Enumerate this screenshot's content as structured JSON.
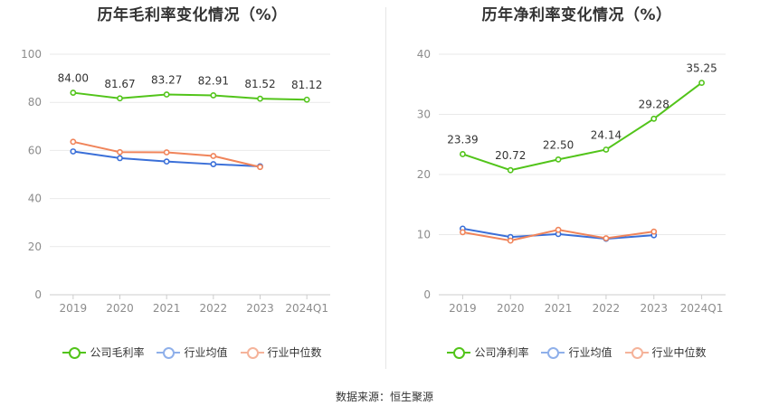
{
  "chart_data": [
    {
      "type": "line",
      "title": "历年毛利率变化情况（%）",
      "categories": [
        "2019",
        "2020",
        "2021",
        "2022",
        "2023",
        "2024Q1"
      ],
      "ylim": [
        0,
        100
      ],
      "yticks": [
        0,
        20,
        40,
        60,
        80,
        100
      ],
      "grid": true,
      "legend_position": "bottom",
      "series": [
        {
          "name": "公司毛利率",
          "color": "#52c41a",
          "values": [
            84.0,
            81.67,
            83.27,
            82.91,
            81.52,
            81.12
          ],
          "labels": [
            "84.00",
            "81.67",
            "83.27",
            "82.91",
            "81.52",
            "81.12"
          ],
          "show_labels": true
        },
        {
          "name": "行业均值",
          "color": "#3a6fd8",
          "legend_color": "#8fb0ea",
          "values": [
            59.6,
            56.8,
            55.4,
            54.3,
            53.4,
            null
          ],
          "show_labels": false
        },
        {
          "name": "行业中位数",
          "color": "#f0845a",
          "legend_color": "#f5b39a",
          "values": [
            63.6,
            59.3,
            59.2,
            57.7,
            53.1,
            null
          ],
          "show_labels": false
        }
      ]
    },
    {
      "type": "line",
      "title": "历年净利率变化情况（%）",
      "categories": [
        "2019",
        "2020",
        "2021",
        "2022",
        "2023",
        "2024Q1"
      ],
      "ylim": [
        0,
        40
      ],
      "yticks": [
        0,
        10,
        20,
        30,
        40
      ],
      "grid": true,
      "legend_position": "bottom",
      "series": [
        {
          "name": "公司净利率",
          "color": "#52c41a",
          "values": [
            23.39,
            20.72,
            22.5,
            24.14,
            29.28,
            35.25
          ],
          "labels": [
            "23.39",
            "20.72",
            "22.50",
            "24.14",
            "29.28",
            "35.25"
          ],
          "show_labels": true
        },
        {
          "name": "行业均值",
          "color": "#3a6fd8",
          "legend_color": "#8fb0ea",
          "values": [
            11.0,
            9.6,
            10.1,
            9.3,
            9.9,
            null
          ],
          "show_labels": false
        },
        {
          "name": "行业中位数",
          "color": "#f0845a",
          "legend_color": "#f5b39a",
          "values": [
            10.4,
            9.0,
            10.8,
            9.4,
            10.5,
            null
          ],
          "show_labels": false
        }
      ]
    }
  ],
  "source_text": "数据来源：恒生聚源"
}
